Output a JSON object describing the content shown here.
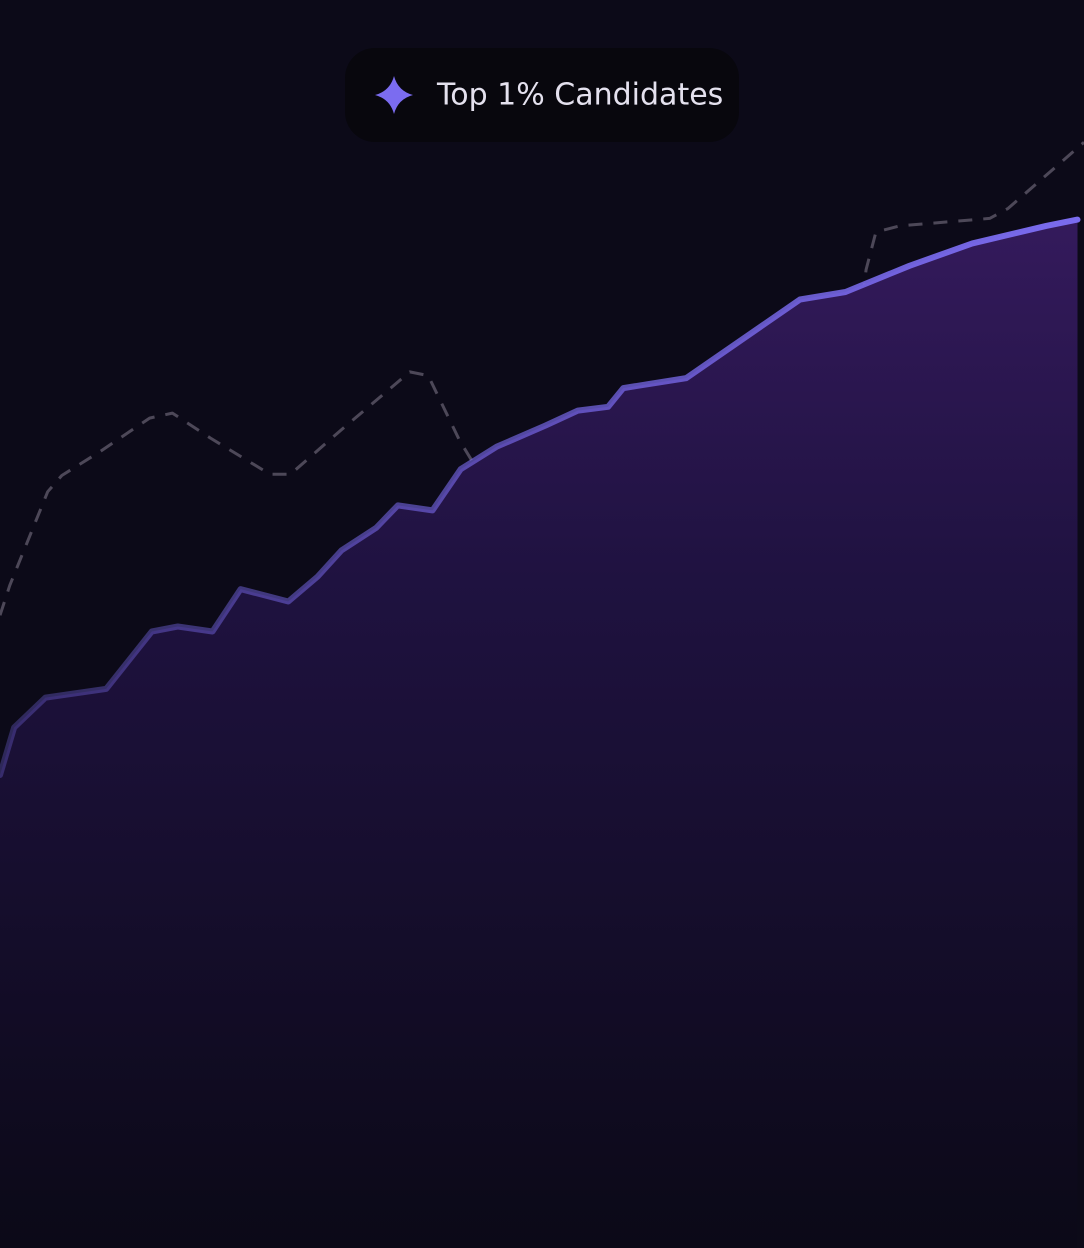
{
  "chart_data": {
    "type": "line",
    "annotation": "Top 1% Candidates",
    "xlim": [
      0,
      100
    ],
    "ylim": [
      0,
      100
    ],
    "grid": false,
    "series": [
      {
        "color": "#4d4858",
        "dashed": true,
        "area": false,
        "x": [
          0,
          0.9,
          4.4,
          5.7,
          9.2,
          13.8,
          15.9,
          19.4,
          24.9,
          26.8,
          31.4,
          37.8,
          39.5,
          42.4,
          45.2,
          48.0,
          50.0,
          59.0,
          60.9,
          65.5,
          67.3,
          75.6,
          77.5,
          79.9,
          80.8,
          83.0,
          91.3,
          93.0,
          100
        ],
        "values": [
          50.7,
          53.1,
          60.6,
          61.9,
          63.8,
          66.5,
          66.9,
          64.9,
          62.0,
          62.0,
          65.5,
          70.2,
          69.9,
          64.7,
          60.7,
          55.4,
          54.2,
          52.1,
          52.9,
          59.3,
          60.0,
          59.5,
          60.4,
          78.4,
          81.4,
          81.9,
          82.5,
          83.3,
          88.6
        ]
      },
      {
        "color": "#7b6cf0",
        "dashed": false,
        "area": true,
        "x": [
          0,
          1.3,
          4.2,
          9.8,
          14.0,
          16.4,
          19.6,
          22.2,
          26.6,
          29.3,
          31.5,
          34.7,
          36.7,
          39.9,
          42.5,
          45.8,
          50.3,
          53.3,
          56.1,
          57.5,
          63.3,
          73.8,
          78.0,
          83.9,
          89.7,
          96.5,
          99.4
        ],
        "values": [
          37.9,
          41.7,
          44.1,
          44.8,
          49.4,
          49.8,
          49.4,
          52.8,
          51.8,
          53.8,
          55.9,
          57.7,
          59.5,
          59.1,
          62.4,
          64.2,
          65.9,
          67.1,
          67.4,
          68.9,
          69.7,
          76.0,
          76.6,
          78.7,
          80.5,
          81.9,
          82.4
        ]
      }
    ]
  }
}
